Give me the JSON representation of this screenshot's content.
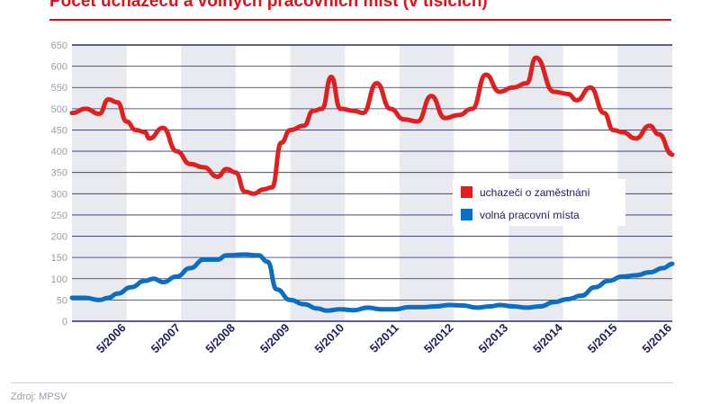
{
  "chart_data": {
    "type": "line",
    "title": "Počet uchazečů a volných pracovních míst (v tisících)",
    "source": "Zdroj: MPSV",
    "ylim": [
      0,
      650
    ],
    "yticks": [
      0,
      50,
      100,
      150,
      200,
      250,
      300,
      350,
      400,
      450,
      500,
      550,
      600,
      650
    ],
    "xlim": [
      "2005-05",
      "2016-05"
    ],
    "xtick_labels": [
      "5/2006",
      "5/2007",
      "5/2008",
      "5/2009",
      "5/2010",
      "5/2011",
      "5/2012",
      "5/2013",
      "5/2014",
      "5/2015",
      "5/2016"
    ],
    "grid": "horizontal",
    "alternating_year_bands": true,
    "legend_placement": "center-right",
    "colors": {
      "title": "#d7141e",
      "band": "#e9eaef",
      "grid": "#2b2b6b",
      "xtick": "#1d1d5c",
      "ytick": "#9a9ab0"
    },
    "series": [
      {
        "name": "uchazeči o zaměstnání",
        "color": "#e0201f",
        "x": [
          "2005-05",
          "2005-08",
          "2005-11",
          "2006-01",
          "2006-03",
          "2006-05",
          "2006-07",
          "2006-09",
          "2006-10",
          "2007-01",
          "2007-04",
          "2007-07",
          "2007-10",
          "2008-01",
          "2008-03",
          "2008-05",
          "2008-07",
          "2008-09",
          "2008-11",
          "2009-01",
          "2009-03",
          "2009-05",
          "2009-08",
          "2009-10",
          "2009-12",
          "2010-02",
          "2010-04",
          "2010-07",
          "2010-09",
          "2010-12",
          "2011-03",
          "2011-06",
          "2011-09",
          "2011-12",
          "2012-03",
          "2012-06",
          "2012-09",
          "2012-12",
          "2013-03",
          "2013-06",
          "2013-09",
          "2013-11",
          "2014-03",
          "2014-06",
          "2014-08",
          "2014-11",
          "2015-02",
          "2015-04",
          "2015-06",
          "2015-09",
          "2015-12",
          "2016-02",
          "2016-05"
        ],
        "y": [
          490,
          500,
          488,
          522,
          515,
          470,
          450,
          445,
          430,
          455,
          400,
          370,
          362,
          340,
          358,
          350,
          305,
          300,
          310,
          315,
          420,
          450,
          460,
          495,
          500,
          575,
          500,
          495,
          490,
          560,
          500,
          475,
          470,
          530,
          478,
          485,
          500,
          580,
          540,
          550,
          560,
          620,
          540,
          535,
          520,
          550,
          490,
          450,
          445,
          430,
          460,
          440,
          392
        ]
      },
      {
        "name": "volná pracovní místa",
        "color": "#0a6fc2",
        "x": [
          "2005-05",
          "2005-08",
          "2005-11",
          "2006-01",
          "2006-03",
          "2006-06",
          "2006-09",
          "2006-11",
          "2007-01",
          "2007-04",
          "2007-07",
          "2007-10",
          "2008-01",
          "2008-03",
          "2008-07",
          "2008-10",
          "2008-12",
          "2009-02",
          "2009-05",
          "2009-08",
          "2009-11",
          "2010-01",
          "2010-04",
          "2010-07",
          "2010-10",
          "2011-01",
          "2011-04",
          "2011-07",
          "2011-10",
          "2012-01",
          "2012-04",
          "2012-07",
          "2012-10",
          "2013-01",
          "2013-03",
          "2013-06",
          "2013-09",
          "2013-12",
          "2014-03",
          "2014-06",
          "2014-09",
          "2014-12",
          "2015-03",
          "2015-06",
          "2015-09",
          "2015-12",
          "2016-03",
          "2016-05"
        ],
        "y": [
          55,
          55,
          50,
          55,
          65,
          80,
          95,
          100,
          92,
          105,
          125,
          145,
          145,
          155,
          157,
          155,
          140,
          75,
          50,
          40,
          30,
          25,
          28,
          26,
          32,
          28,
          28,
          33,
          33,
          35,
          38,
          37,
          32,
          35,
          38,
          35,
          32,
          35,
          45,
          52,
          60,
          80,
          95,
          105,
          108,
          115,
          125,
          135
        ]
      }
    ]
  }
}
